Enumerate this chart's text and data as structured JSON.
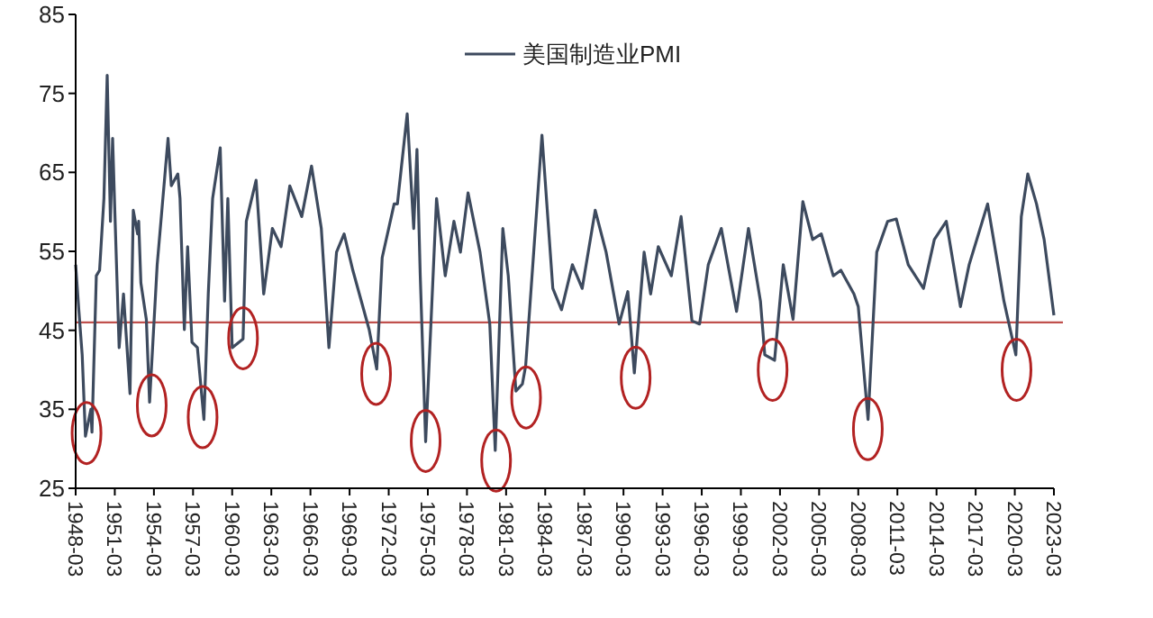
{
  "chart_data": {
    "type": "line",
    "x": [
      "1948-03",
      "1948-06",
      "1948-09",
      "1948-12",
      "1949-05",
      "1949-06",
      "1949-10",
      "1950-01",
      "1950-05",
      "1950-08",
      "1950-11",
      "1951-01",
      "1951-03",
      "1951-07",
      "1951-11",
      "1952-05",
      "1952-08",
      "1952-12",
      "1953-01",
      "1953-03",
      "1953-08",
      "1953-11",
      "1954-06",
      "1955-04",
      "1955-07",
      "1956-01",
      "1956-03",
      "1956-07",
      "1956-10",
      "1957-02",
      "1957-07",
      "1958-01",
      "1958-05",
      "1958-09",
      "1959-04",
      "1959-08",
      "1959-11",
      "1960-03",
      "1961-01",
      "1961-04",
      "1962-01",
      "1962-08",
      "1963-04",
      "1963-12",
      "1964-08",
      "1965-07",
      "1966-04",
      "1967-01",
      "1967-08",
      "1968-03",
      "1968-10",
      "1969-06",
      "1970-09",
      "1971-04",
      "1971-09",
      "1972-08",
      "1972-11",
      "1973-08",
      "1974-02",
      "1974-05",
      "1974-08",
      "1975-01",
      "1975-11",
      "1976-07",
      "1977-03",
      "1977-09",
      "1978-04",
      "1979-03",
      "1979-12",
      "1980-05",
      "1980-12",
      "1981-05",
      "1981-12",
      "1982-06",
      "1982-09",
      "1983-12",
      "1984-10",
      "1985-06",
      "1986-04",
      "1987-01",
      "1988-01",
      "1988-11",
      "1989-11",
      "1990-07",
      "1991-01",
      "1991-10",
      "1992-04",
      "1992-11",
      "1993-11",
      "1994-08",
      "1995-06",
      "1996-01",
      "1996-09",
      "1997-09",
      "1998-11",
      "1999-10",
      "2000-09",
      "2001-01",
      "2001-10",
      "2002-06",
      "2003-03",
      "2003-12",
      "2004-09",
      "2005-05",
      "2006-04",
      "2006-11",
      "2007-11",
      "2008-03",
      "2008-12",
      "2009-08",
      "2010-06",
      "2011-02",
      "2012-01",
      "2013-03",
      "2014-01",
      "2014-12",
      "2016-01",
      "2016-09",
      "2018-02",
      "2019-05",
      "2020-04",
      "2020-09",
      "2021-03",
      "2021-11",
      "2022-06",
      "2023-03"
    ],
    "series": [
      {
        "name": "美国制造业PMI",
        "color": "#3d4a5e",
        "values": [
          53.3,
          47.4,
          41.9,
          31.6,
          35,
          32.1,
          51.9,
          52.6,
          61.7,
          77.3,
          58.8,
          69.3,
          60.2,
          42.8,
          49.6,
          37,
          60.2,
          57.2,
          58.8,
          51,
          46.4,
          35.9,
          53.3,
          69.3,
          63.3,
          64.8,
          61.7,
          45.1,
          55.6,
          43.5,
          42.8,
          33.7,
          49.6,
          61.7,
          68.1,
          48.7,
          61.7,
          42.8,
          43.9,
          58.8,
          64,
          49.6,
          57.9,
          55.6,
          63.3,
          59.4,
          65.8,
          57.9,
          42.8,
          54.9,
          57.2,
          52.6,
          45.1,
          40.1,
          54.2,
          61,
          61,
          72.4,
          57.9,
          67.9,
          52,
          30.9,
          61.7,
          51.9,
          58.8,
          54.9,
          62.4,
          54.9,
          45.8,
          29.8,
          57.9,
          51.9,
          37.3,
          38.2,
          40.5,
          69.7,
          50.3,
          47.6,
          53.3,
          50.3,
          60.2,
          54.9,
          45.8,
          49.9,
          39.6,
          54.9,
          49.6,
          55.6,
          51.9,
          59.4,
          46.2,
          45.8,
          53.3,
          57.9,
          47.4,
          57.9,
          48.7,
          41.9,
          41.2,
          53.3,
          46.4,
          61.3,
          56.5,
          57.2,
          51.9,
          52.6,
          49.6,
          48,
          33.7,
          54.9,
          58.8,
          59.1,
          53.3,
          50.3,
          56.5,
          58.8,
          48,
          53.3,
          61,
          48.7,
          41.9,
          59.4,
          64.8,
          61,
          56.5,
          46.9
        ]
      }
    ],
    "xlim": [
      "1948-03",
      "2023-03"
    ],
    "xticks": [
      "1948-03",
      "1951-03",
      "1954-03",
      "1957-03",
      "1960-03",
      "1963-03",
      "1966-03",
      "1969-03",
      "1972-03",
      "1975-03",
      "1978-03",
      "1981-03",
      "1984-03",
      "1987-03",
      "1990-03",
      "1993-03",
      "1996-03",
      "1999-03",
      "2002-03",
      "2005-03",
      "2008-03",
      "2011-03",
      "2014-03",
      "2017-03",
      "2020-03",
      "2023-03"
    ],
    "ylim": [
      25,
      85
    ],
    "yticks": [
      25,
      35,
      45,
      55,
      65,
      75,
      85
    ],
    "ref_lines": [
      {
        "axis": "y",
        "value": 46,
        "color": "#c0504d"
      }
    ],
    "legend": "top"
  }
}
